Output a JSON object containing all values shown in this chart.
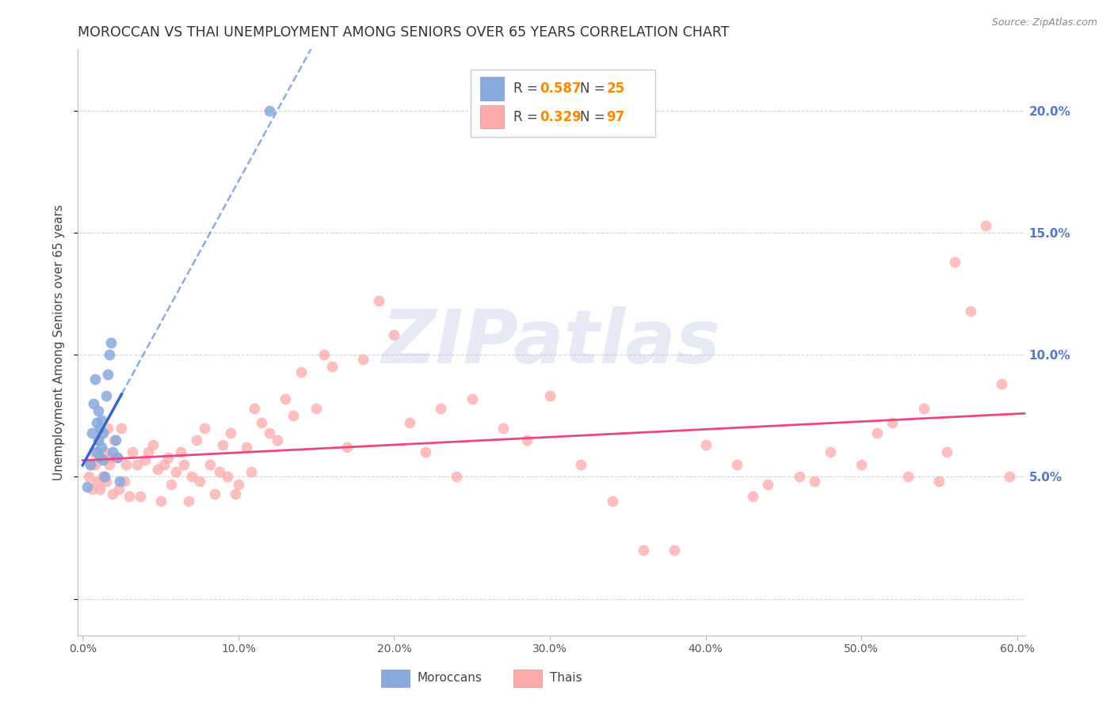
{
  "title": "MOROCCAN VS THAI UNEMPLOYMENT AMONG SENIORS OVER 65 YEARS CORRELATION CHART",
  "source": "Source: ZipAtlas.com",
  "ylabel": "Unemployment Among Seniors over 65 years",
  "legend_blue_r": "0.587",
  "legend_blue_n": "25",
  "legend_pink_r": "0.329",
  "legend_pink_n": "97",
  "legend_label_blue": "Moroccans",
  "legend_label_pink": "Thais",
  "xlim": [
    -0.003,
    0.605
  ],
  "ylim": [
    -0.015,
    0.225
  ],
  "x_ticks": [
    0.0,
    0.1,
    0.2,
    0.3,
    0.4,
    0.5,
    0.6
  ],
  "x_tick_labels": [
    "0.0%",
    "10.0%",
    "20.0%",
    "30.0%",
    "40.0%",
    "50.0%",
    "60.0%"
  ],
  "y_ticks_right": [
    0.05,
    0.1,
    0.15,
    0.2
  ],
  "y_tick_labels_right": [
    "5.0%",
    "10.0%",
    "15.0%",
    "20.0%"
  ],
  "grid_color": "#cccccc",
  "blue_color": "#88aadd",
  "pink_color": "#ffaaaa",
  "blue_line_color": "#3366cc",
  "pink_line_color": "#ee4488",
  "watermark": "ZIPatlas",
  "watermark_color": "#aabbdd",
  "blue_x": [
    0.003,
    0.005,
    0.006,
    0.007,
    0.008,
    0.009,
    0.009,
    0.01,
    0.01,
    0.011,
    0.011,
    0.012,
    0.012,
    0.013,
    0.013,
    0.014,
    0.015,
    0.016,
    0.017,
    0.018,
    0.019,
    0.021,
    0.022,
    0.024,
    0.12
  ],
  "blue_y": [
    0.046,
    0.055,
    0.068,
    0.08,
    0.09,
    0.06,
    0.072,
    0.065,
    0.077,
    0.058,
    0.07,
    0.062,
    0.073,
    0.057,
    0.068,
    0.05,
    0.083,
    0.092,
    0.1,
    0.105,
    0.06,
    0.065,
    0.058,
    0.048,
    0.2
  ],
  "pink_x": [
    0.004,
    0.005,
    0.006,
    0.007,
    0.008,
    0.009,
    0.01,
    0.011,
    0.012,
    0.013,
    0.014,
    0.015,
    0.016,
    0.017,
    0.018,
    0.019,
    0.02,
    0.022,
    0.023,
    0.025,
    0.027,
    0.028,
    0.03,
    0.032,
    0.035,
    0.037,
    0.04,
    0.042,
    0.045,
    0.048,
    0.05,
    0.052,
    0.055,
    0.057,
    0.06,
    0.063,
    0.065,
    0.068,
    0.07,
    0.073,
    0.075,
    0.078,
    0.082,
    0.085,
    0.088,
    0.09,
    0.093,
    0.095,
    0.098,
    0.1,
    0.105,
    0.108,
    0.11,
    0.115,
    0.12,
    0.125,
    0.13,
    0.135,
    0.14,
    0.15,
    0.155,
    0.16,
    0.17,
    0.18,
    0.19,
    0.2,
    0.21,
    0.22,
    0.23,
    0.24,
    0.25,
    0.27,
    0.285,
    0.3,
    0.32,
    0.34,
    0.36,
    0.38,
    0.4,
    0.42,
    0.44,
    0.46,
    0.48,
    0.5,
    0.51,
    0.52,
    0.53,
    0.54,
    0.55,
    0.555,
    0.56,
    0.57,
    0.58,
    0.59,
    0.595,
    0.43,
    0.47
  ],
  "pink_y": [
    0.05,
    0.055,
    0.045,
    0.06,
    0.055,
    0.048,
    0.065,
    0.045,
    0.068,
    0.05,
    0.06,
    0.048,
    0.07,
    0.055,
    0.058,
    0.043,
    0.065,
    0.058,
    0.045,
    0.07,
    0.048,
    0.055,
    0.042,
    0.06,
    0.055,
    0.042,
    0.057,
    0.06,
    0.063,
    0.053,
    0.04,
    0.055,
    0.058,
    0.047,
    0.052,
    0.06,
    0.055,
    0.04,
    0.05,
    0.065,
    0.048,
    0.07,
    0.055,
    0.043,
    0.052,
    0.063,
    0.05,
    0.068,
    0.043,
    0.047,
    0.062,
    0.052,
    0.078,
    0.072,
    0.068,
    0.065,
    0.082,
    0.075,
    0.093,
    0.078,
    0.1,
    0.095,
    0.062,
    0.098,
    0.122,
    0.108,
    0.072,
    0.06,
    0.078,
    0.05,
    0.082,
    0.07,
    0.065,
    0.083,
    0.055,
    0.04,
    0.02,
    0.02,
    0.063,
    0.055,
    0.047,
    0.05,
    0.06,
    0.055,
    0.068,
    0.072,
    0.05,
    0.078,
    0.048,
    0.06,
    0.138,
    0.118,
    0.153,
    0.088,
    0.05,
    0.042,
    0.048
  ]
}
